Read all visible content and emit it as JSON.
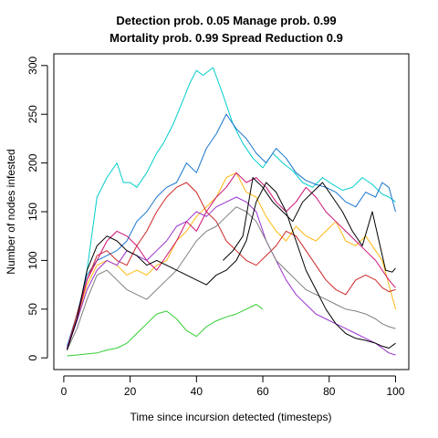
{
  "chart_data": {
    "type": "line",
    "title_line1": "Detection prob. 0.05 Manage prob. 0.99",
    "title_line2": "Mortality prob. 0.99 Spread Reduction 0.9",
    "xlabel": "Time since incursion detected (timesteps)",
    "ylabel": "Number of nodes infested",
    "xlim": [
      1,
      100
    ],
    "ylim": [
      0,
      300
    ],
    "xticks": [
      0,
      20,
      40,
      60,
      80,
      100
    ],
    "yticks": [
      0,
      50,
      100,
      150,
      200,
      250,
      300
    ],
    "legend": "none",
    "grid": false,
    "series": [
      {
        "color": "#00CDCD",
        "points": [
          [
            1,
            10
          ],
          [
            4,
            40
          ],
          [
            7,
            90
          ],
          [
            10,
            165
          ],
          [
            13,
            185
          ],
          [
            16,
            200
          ],
          [
            18,
            180
          ],
          [
            20,
            180
          ],
          [
            22,
            175
          ],
          [
            25,
            190
          ],
          [
            28,
            210
          ],
          [
            30,
            220
          ],
          [
            33,
            240
          ],
          [
            36,
            265
          ],
          [
            38,
            282
          ],
          [
            40,
            295
          ],
          [
            42,
            290
          ],
          [
            45,
            298
          ],
          [
            48,
            270
          ],
          [
            51,
            240
          ],
          [
            54,
            220
          ],
          [
            57,
            205
          ],
          [
            60,
            195
          ],
          [
            63,
            210
          ],
          [
            66,
            200
          ],
          [
            69,
            192
          ],
          [
            72,
            180
          ],
          [
            75,
            175
          ],
          [
            78,
            185
          ],
          [
            81,
            178
          ],
          [
            84,
            172
          ],
          [
            87,
            175
          ],
          [
            90,
            185
          ],
          [
            93,
            178
          ],
          [
            96,
            168
          ],
          [
            98,
            165
          ],
          [
            100,
            160
          ]
        ]
      },
      {
        "color": "#1874CD",
        "points": [
          [
            1,
            12
          ],
          [
            4,
            45
          ],
          [
            7,
            85
          ],
          [
            10,
            100
          ],
          [
            13,
            105
          ],
          [
            16,
            110
          ],
          [
            19,
            120
          ],
          [
            22,
            140
          ],
          [
            25,
            150
          ],
          [
            28,
            165
          ],
          [
            31,
            175
          ],
          [
            34,
            180
          ],
          [
            37,
            200
          ],
          [
            40,
            190
          ],
          [
            43,
            215
          ],
          [
            46,
            230
          ],
          [
            49,
            250
          ],
          [
            52,
            235
          ],
          [
            55,
            225
          ],
          [
            58,
            210
          ],
          [
            61,
            200
          ],
          [
            64,
            215
          ],
          [
            67,
            205
          ],
          [
            70,
            190
          ],
          [
            73,
            182
          ],
          [
            76,
            178
          ],
          [
            79,
            175
          ],
          [
            82,
            170
          ],
          [
            85,
            160
          ],
          [
            88,
            155
          ],
          [
            91,
            170
          ],
          [
            94,
            165
          ],
          [
            96,
            180
          ],
          [
            98,
            175
          ],
          [
            100,
            150
          ]
        ]
      },
      {
        "color": "#FFB90F",
        "points": [
          [
            1,
            8
          ],
          [
            4,
            40
          ],
          [
            7,
            75
          ],
          [
            10,
            95
          ],
          [
            13,
            100
          ],
          [
            16,
            95
          ],
          [
            19,
            85
          ],
          [
            22,
            90
          ],
          [
            25,
            85
          ],
          [
            28,
            95
          ],
          [
            31,
            100
          ],
          [
            34,
            120
          ],
          [
            37,
            130
          ],
          [
            40,
            145
          ],
          [
            43,
            155
          ],
          [
            46,
            165
          ],
          [
            49,
            185
          ],
          [
            52,
            190
          ],
          [
            55,
            170
          ],
          [
            58,
            165
          ],
          [
            61,
            145
          ],
          [
            64,
            130
          ],
          [
            67,
            120
          ],
          [
            70,
            135
          ],
          [
            73,
            125
          ],
          [
            76,
            120
          ],
          [
            79,
            130
          ],
          [
            82,
            140
          ],
          [
            85,
            120
          ],
          [
            88,
            115
          ],
          [
            91,
            125
          ],
          [
            94,
            110
          ],
          [
            96,
            100
          ],
          [
            98,
            75
          ],
          [
            100,
            50
          ]
        ]
      },
      {
        "color": "#CD2626",
        "points": [
          [
            1,
            9
          ],
          [
            4,
            45
          ],
          [
            7,
            80
          ],
          [
            10,
            105
          ],
          [
            13,
            110
          ],
          [
            16,
            100
          ],
          [
            19,
            95
          ],
          [
            22,
            115
          ],
          [
            25,
            130
          ],
          [
            28,
            150
          ],
          [
            31,
            165
          ],
          [
            34,
            175
          ],
          [
            37,
            180
          ],
          [
            40,
            170
          ],
          [
            43,
            150
          ],
          [
            46,
            140
          ],
          [
            49,
            120
          ],
          [
            52,
            110
          ],
          [
            55,
            100
          ],
          [
            58,
            95
          ],
          [
            61,
            105
          ],
          [
            64,
            115
          ],
          [
            67,
            130
          ],
          [
            70,
            125
          ],
          [
            73,
            110
          ],
          [
            76,
            95
          ],
          [
            79,
            80
          ],
          [
            82,
            70
          ],
          [
            85,
            65
          ],
          [
            88,
            80
          ],
          [
            91,
            85
          ],
          [
            94,
            80
          ],
          [
            96,
            72
          ],
          [
            98,
            68
          ],
          [
            100,
            70
          ]
        ]
      },
      {
        "color": "#CD1076",
        "points": [
          [
            1,
            10
          ],
          [
            4,
            40
          ],
          [
            7,
            80
          ],
          [
            10,
            100
          ],
          [
            13,
            120
          ],
          [
            16,
            130
          ],
          [
            19,
            125
          ],
          [
            22,
            115
          ],
          [
            25,
            100
          ],
          [
            28,
            90
          ],
          [
            31,
            105
          ],
          [
            34,
            120
          ],
          [
            37,
            140
          ],
          [
            40,
            130
          ],
          [
            43,
            150
          ],
          [
            46,
            165
          ],
          [
            49,
            175
          ],
          [
            52,
            190
          ],
          [
            55,
            180
          ],
          [
            58,
            185
          ],
          [
            61,
            175
          ],
          [
            64,
            160
          ],
          [
            67,
            150
          ],
          [
            70,
            160
          ],
          [
            73,
            175
          ],
          [
            76,
            165
          ],
          [
            79,
            150
          ],
          [
            82,
            140
          ],
          [
            85,
            130
          ],
          [
            88,
            120
          ],
          [
            91,
            110
          ],
          [
            94,
            100
          ],
          [
            96,
            90
          ],
          [
            98,
            80
          ],
          [
            100,
            72
          ]
        ]
      },
      {
        "color": "#9932CC",
        "points": [
          [
            1,
            9
          ],
          [
            4,
            38
          ],
          [
            7,
            70
          ],
          [
            10,
            90
          ],
          [
            13,
            100
          ],
          [
            16,
            95
          ],
          [
            19,
            110
          ],
          [
            22,
            105
          ],
          [
            25,
            100
          ],
          [
            28,
            110
          ],
          [
            31,
            120
          ],
          [
            34,
            135
          ],
          [
            37,
            140
          ],
          [
            40,
            150
          ],
          [
            43,
            145
          ],
          [
            46,
            155
          ],
          [
            49,
            160
          ],
          [
            52,
            165
          ],
          [
            55,
            160
          ],
          [
            58,
            150
          ],
          [
            61,
            120
          ],
          [
            64,
            100
          ],
          [
            67,
            80
          ],
          [
            70,
            65
          ],
          [
            73,
            55
          ],
          [
            76,
            45
          ],
          [
            79,
            40
          ],
          [
            82,
            35
          ],
          [
            85,
            30
          ],
          [
            88,
            25
          ],
          [
            91,
            20
          ],
          [
            94,
            15
          ],
          [
            96,
            10
          ],
          [
            98,
            5
          ],
          [
            100,
            3
          ]
        ]
      },
      {
        "color": "#808080",
        "points": [
          [
            1,
            8
          ],
          [
            4,
            30
          ],
          [
            7,
            60
          ],
          [
            10,
            85
          ],
          [
            13,
            90
          ],
          [
            16,
            80
          ],
          [
            19,
            70
          ],
          [
            22,
            65
          ],
          [
            25,
            60
          ],
          [
            28,
            70
          ],
          [
            31,
            80
          ],
          [
            34,
            90
          ],
          [
            37,
            105
          ],
          [
            40,
            120
          ],
          [
            43,
            130
          ],
          [
            46,
            135
          ],
          [
            49,
            145
          ],
          [
            52,
            155
          ],
          [
            55,
            150
          ],
          [
            58,
            140
          ],
          [
            61,
            120
          ],
          [
            64,
            100
          ],
          [
            67,
            90
          ],
          [
            70,
            80
          ],
          [
            73,
            70
          ],
          [
            76,
            65
          ],
          [
            79,
            60
          ],
          [
            82,
            55
          ],
          [
            85,
            50
          ],
          [
            88,
            48
          ],
          [
            91,
            45
          ],
          [
            94,
            40
          ],
          [
            96,
            35
          ],
          [
            98,
            32
          ],
          [
            100,
            30
          ]
        ]
      },
      {
        "color": "#32CD32",
        "points": [
          [
            1,
            2
          ],
          [
            4,
            3
          ],
          [
            7,
            4
          ],
          [
            10,
            5
          ],
          [
            13,
            8
          ],
          [
            16,
            10
          ],
          [
            19,
            15
          ],
          [
            22,
            25
          ],
          [
            25,
            35
          ],
          [
            28,
            45
          ],
          [
            31,
            48
          ],
          [
            34,
            40
          ],
          [
            37,
            28
          ],
          [
            40,
            22
          ],
          [
            43,
            32
          ],
          [
            46,
            38
          ],
          [
            49,
            42
          ],
          [
            52,
            45
          ],
          [
            55,
            50
          ],
          [
            58,
            55
          ],
          [
            60,
            50
          ]
        ]
      },
      {
        "color": "#000000",
        "points": [
          [
            1,
            8
          ],
          [
            4,
            40
          ],
          [
            7,
            90
          ],
          [
            10,
            115
          ],
          [
            13,
            125
          ],
          [
            16,
            120
          ],
          [
            19,
            110
          ],
          [
            22,
            105
          ],
          [
            25,
            95
          ],
          [
            28,
            100
          ],
          [
            31,
            95
          ],
          [
            34,
            90
          ],
          [
            37,
            85
          ],
          [
            40,
            80
          ],
          [
            43,
            75
          ],
          [
            46,
            85
          ],
          [
            49,
            90
          ],
          [
            52,
            100
          ],
          [
            55,
            120
          ],
          [
            58,
            160
          ],
          [
            61,
            180
          ],
          [
            64,
            170
          ],
          [
            67,
            150
          ],
          [
            70,
            120
          ],
          [
            73,
            90
          ],
          [
            76,
            70
          ],
          [
            79,
            50
          ],
          [
            82,
            35
          ],
          [
            85,
            25
          ],
          [
            88,
            20
          ],
          [
            91,
            18
          ],
          [
            94,
            15
          ],
          [
            96,
            12
          ],
          [
            98,
            10
          ],
          [
            100,
            15
          ]
        ]
      },
      {
        "color": "#000000",
        "points": [
          [
            48,
            100
          ],
          [
            51,
            110
          ],
          [
            54,
            125
          ],
          [
            57,
            185
          ],
          [
            60,
            175
          ],
          [
            63,
            160
          ],
          [
            66,
            150
          ],
          [
            69,
            140
          ],
          [
            72,
            160
          ],
          [
            75,
            170
          ],
          [
            78,
            180
          ],
          [
            81,
            165
          ],
          [
            84,
            150
          ],
          [
            87,
            130
          ],
          [
            90,
            115
          ],
          [
            93,
            150
          ],
          [
            95,
            120
          ],
          [
            97,
            90
          ],
          [
            99,
            88
          ],
          [
            100,
            92
          ]
        ]
      }
    ]
  }
}
